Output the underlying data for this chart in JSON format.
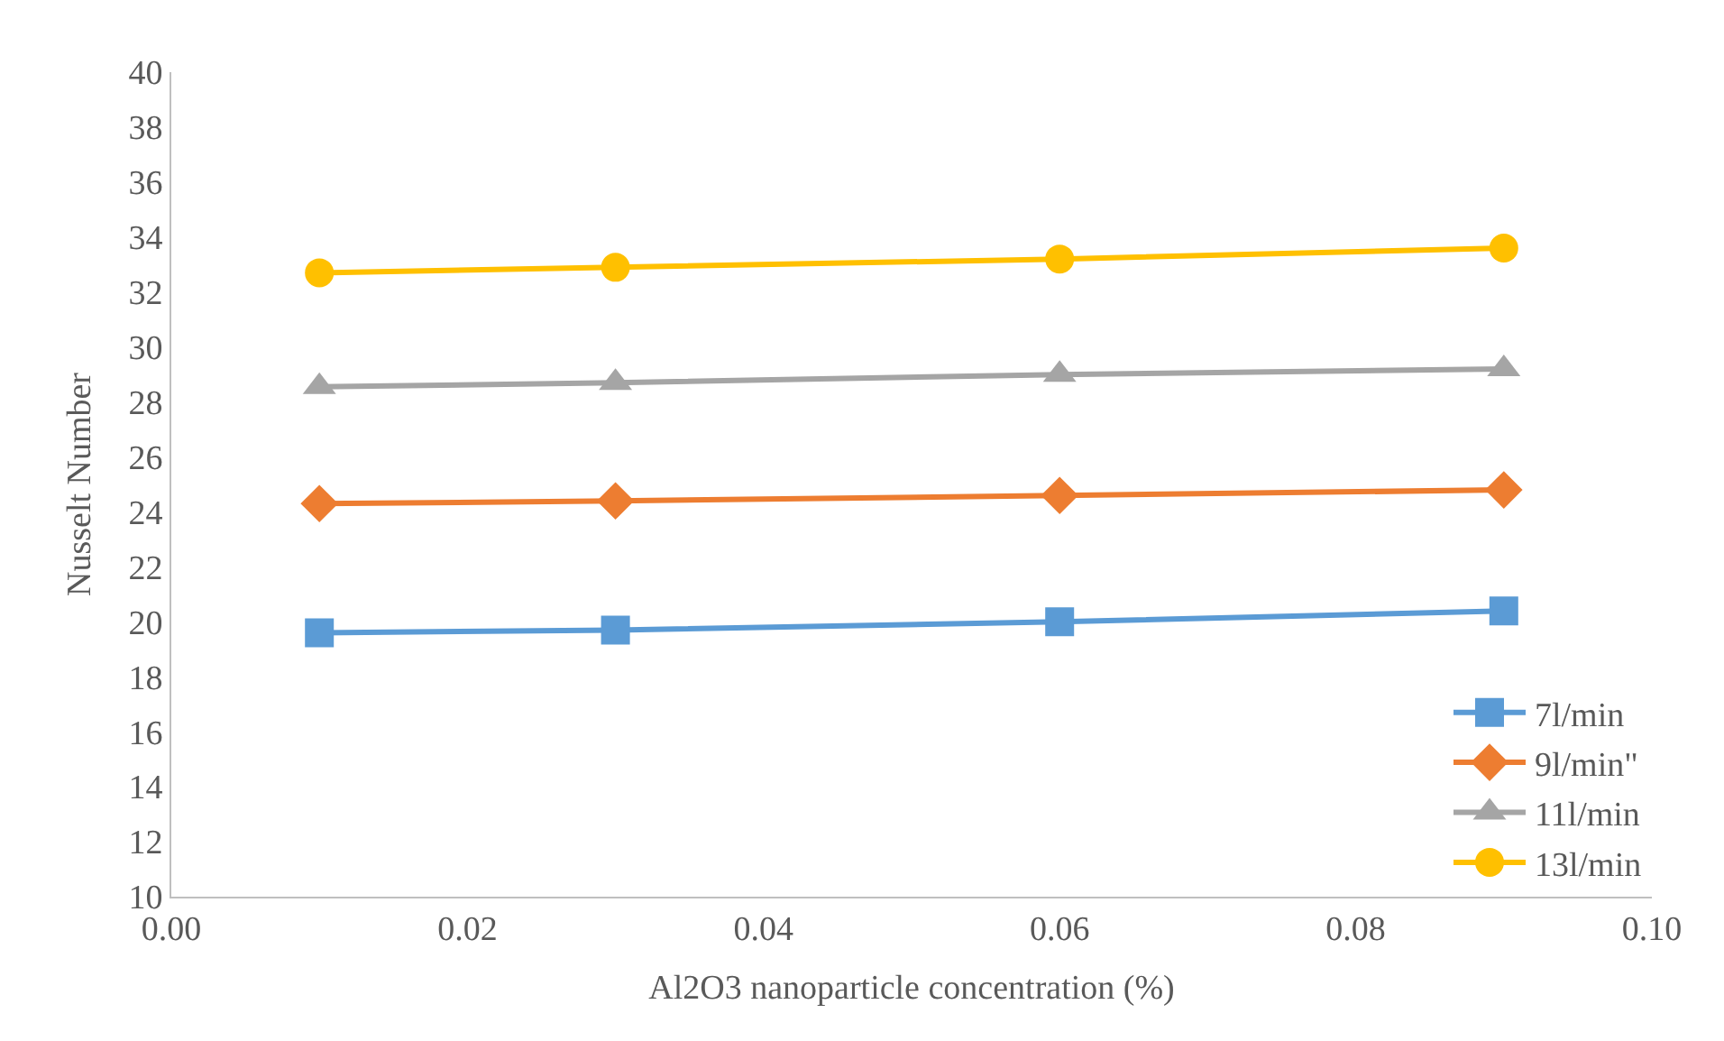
{
  "chart_data": {
    "type": "line",
    "xlabel": "Al2O3 nanoparticle concentration (%)",
    "ylabel": "Nusselt Number",
    "x": [
      0.01,
      0.03,
      0.06,
      0.09
    ],
    "series": [
      {
        "name": "7l/min",
        "color": "#5b9bd5",
        "marker": "square",
        "values": [
          19.6,
          19.7,
          20.0,
          20.4
        ]
      },
      {
        "name": "9l/min\"",
        "color": "#ed7d31",
        "marker": "diamond",
        "values": [
          24.3,
          24.4,
          24.6,
          24.8
        ]
      },
      {
        "name": "11l/min",
        "color": "#a5a5a5",
        "marker": "triangle",
        "values": [
          28.55,
          28.7,
          29.0,
          29.2
        ]
      },
      {
        "name": "13l/min",
        "color": "#ffc000",
        "marker": "circle",
        "values": [
          32.7,
          32.9,
          33.2,
          33.6
        ]
      }
    ],
    "xlim": [
      0,
      0.1
    ],
    "xticks": [
      {
        "value": 0,
        "label": "0.00"
      },
      {
        "value": 0.02,
        "label": "0.02"
      },
      {
        "value": 0.04,
        "label": "0.04"
      },
      {
        "value": 0.06,
        "label": "0.06"
      },
      {
        "value": 0.08,
        "label": "0.08"
      },
      {
        "value": 0.1,
        "label": "0.10"
      }
    ],
    "ylim": [
      10,
      40
    ],
    "yticks": [
      10,
      12,
      14,
      16,
      18,
      20,
      22,
      24,
      26,
      28,
      30,
      32,
      34,
      36,
      38,
      40
    ],
    "legend": "bottom right"
  }
}
